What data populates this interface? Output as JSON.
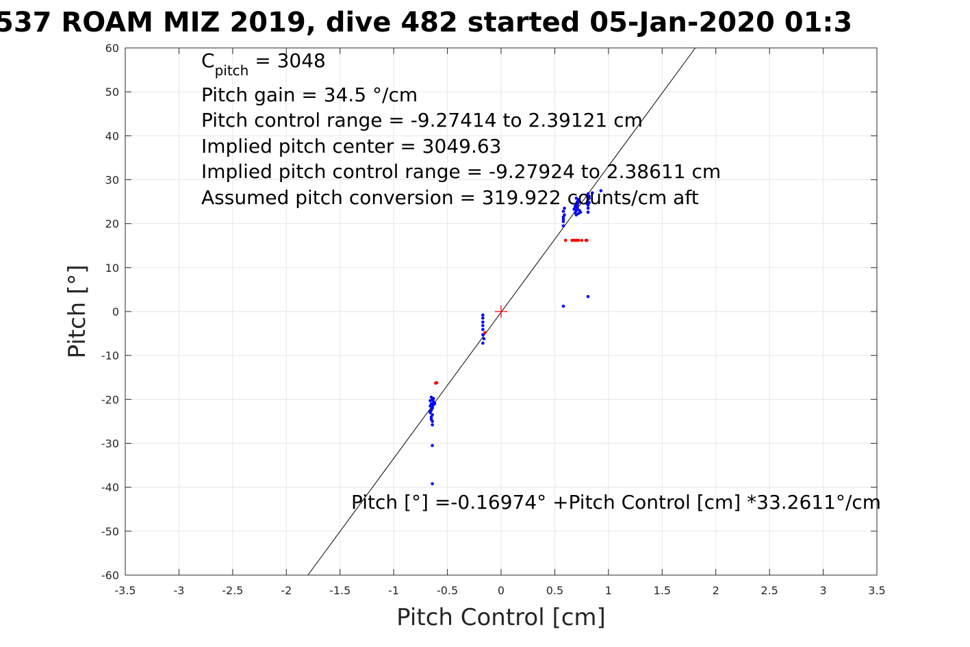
{
  "chart_data": {
    "type": "scatter",
    "title": "537 ROAM MIZ 2019, dive 482 started 05-Jan-2020 01:3",
    "xlabel": "Pitch Control [cm]",
    "ylabel": "Pitch [°]",
    "xlim": [
      -3.5,
      3.5
    ],
    "ylim": [
      -60,
      60
    ],
    "xticks": [
      "-3.5",
      "-3",
      "-2.5",
      "-2",
      "-1.5",
      "-1",
      "-0.5",
      "0",
      "0.5",
      "1",
      "1.5",
      "2",
      "2.5",
      "3",
      "3.5"
    ],
    "yticks": [
      "-60",
      "-50",
      "-40",
      "-30",
      "-20",
      "-10",
      "0",
      "10",
      "20",
      "30",
      "40",
      "50",
      "60"
    ],
    "grid": true,
    "annotations": {
      "c_pitch_base": "C",
      "c_pitch_sub": "pitch",
      "c_pitch_rest": " = 3048",
      "gain": "Pitch gain = 34.5 °/cm",
      "control_range": "Pitch control range = -9.27414 to 2.39121 cm",
      "implied_center": "Implied pitch center = 3049.63",
      "implied_range": "Implied pitch control range = -9.27924 to 2.38611 cm",
      "conversion": "Assumed pitch conversion = 319.922 counts/cm aft",
      "fit_equation": "Pitch [°] =-0.16974° +Pitch Control [cm] *33.2611°/cm"
    },
    "fit_line": {
      "intercept": -0.16974,
      "slope": 33.2611,
      "color": "#000000"
    },
    "center_marker": {
      "x": 0,
      "y": 0,
      "color": "#ff0000"
    },
    "colors": {
      "blue": "#0000ff",
      "red": "#ff0000",
      "grid": "#e6e6e6",
      "axis": "#262626"
    },
    "series": [
      {
        "color": "#0000ff",
        "points": [
          [
            -0.65,
            -19.5
          ],
          [
            -0.64,
            -20.0
          ],
          [
            -0.63,
            -20.5
          ],
          [
            -0.65,
            -21.0
          ],
          [
            -0.66,
            -21.5
          ],
          [
            -0.64,
            -22.0
          ],
          [
            -0.65,
            -22.5
          ],
          [
            -0.66,
            -23.0
          ],
          [
            -0.64,
            -23.5
          ],
          [
            -0.65,
            -24.0
          ],
          [
            -0.63,
            -21.2
          ],
          [
            -0.62,
            -20.8
          ],
          [
            -0.64,
            -21.8
          ],
          [
            -0.66,
            -22.8
          ],
          [
            -0.65,
            -24.5
          ],
          [
            -0.64,
            -25.0
          ],
          [
            -0.64,
            -25.8
          ],
          [
            -0.63,
            -19.8
          ],
          [
            -0.62,
            -21.0
          ],
          [
            -0.66,
            -20.3
          ],
          [
            -0.64,
            -30.5
          ],
          [
            -0.64,
            -39.2
          ],
          [
            -0.17,
            -0.8
          ],
          [
            -0.17,
            -1.5
          ],
          [
            -0.17,
            -2.4
          ],
          [
            -0.17,
            -3.2
          ],
          [
            -0.17,
            -4.1
          ],
          [
            -0.17,
            -5.3
          ],
          [
            -0.16,
            -6.2
          ],
          [
            -0.17,
            -7.2
          ],
          [
            0.58,
            19.5
          ],
          [
            0.58,
            20.5
          ],
          [
            0.58,
            21.0
          ],
          [
            0.58,
            21.5
          ],
          [
            0.59,
            22.0
          ],
          [
            0.58,
            22.8
          ],
          [
            0.59,
            23.5
          ],
          [
            0.58,
            1.2
          ],
          [
            0.69,
            22.5
          ],
          [
            0.7,
            23.0
          ],
          [
            0.71,
            23.5
          ],
          [
            0.69,
            24.0
          ],
          [
            0.7,
            24.5
          ],
          [
            0.71,
            25.0
          ],
          [
            0.72,
            25.5
          ],
          [
            0.7,
            22.0
          ],
          [
            0.71,
            24.2
          ],
          [
            0.69,
            23.8
          ],
          [
            0.73,
            23.0
          ],
          [
            0.72,
            22.3
          ],
          [
            0.74,
            22.6
          ],
          [
            0.68,
            23.3
          ],
          [
            0.72,
            24.8
          ],
          [
            0.7,
            25.8
          ],
          [
            0.81,
            23.5
          ],
          [
            0.81,
            24.2
          ],
          [
            0.82,
            24.8
          ],
          [
            0.81,
            25.5
          ],
          [
            0.82,
            26.2
          ],
          [
            0.81,
            22.6
          ],
          [
            0.82,
            25.8
          ],
          [
            0.81,
            26.8
          ],
          [
            0.8,
            24.6
          ],
          [
            0.93,
            27.5
          ],
          [
            0.85,
            27.0
          ],
          [
            0.81,
            3.4
          ]
        ]
      },
      {
        "color": "#ff0000",
        "points": [
          [
            -0.6,
            -16.2
          ],
          [
            -0.61,
            -16.3
          ],
          [
            -0.15,
            -4.8
          ],
          [
            0.6,
            16.2
          ],
          [
            0.66,
            16.2
          ],
          [
            0.68,
            16.2
          ],
          [
            0.7,
            16.2
          ],
          [
            0.72,
            16.2
          ],
          [
            0.75,
            16.2
          ],
          [
            0.79,
            16.2
          ],
          [
            0.8,
            16.2
          ]
        ]
      }
    ]
  }
}
